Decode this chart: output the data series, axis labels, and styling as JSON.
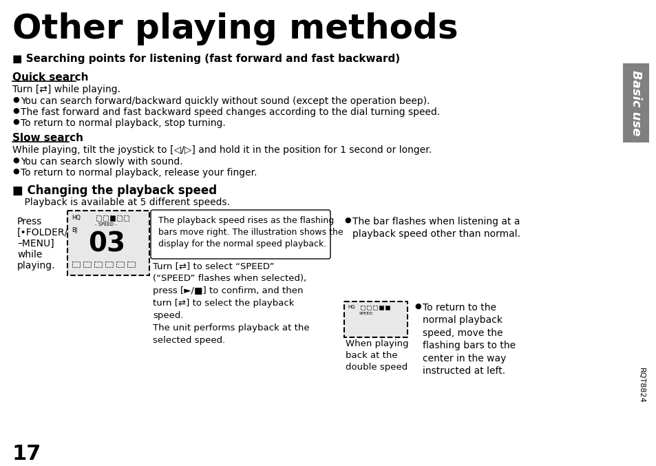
{
  "title": "Other playing methods",
  "section1_header": "■ Searching points for listening (fast forward and fast backward)",
  "quick_search_label": "Quick search",
  "quick_search_text": "Turn [⇄] while playing.",
  "quick_search_bullets": [
    "You can search forward/backward quickly without sound (except the operation beep).",
    "The fast forward and fast backward speed changes according to the dial turning speed.",
    "To return to normal playback, stop turning."
  ],
  "slow_search_label": "Slow search",
  "slow_search_text": "While playing, tilt the joystick to [◁/▷] and hold it in the position for 1 second or longer.",
  "slow_search_bullets": [
    "You can search slowly with sound.",
    "To return to normal playback, release your finger."
  ],
  "section2_header": "■ Changing the playback speed",
  "section2_subtext": "    Playback is available at 5 different speeds.",
  "press_text": [
    "Press",
    "[•FOLDER/",
    "–MENU]",
    "while",
    "playing."
  ],
  "caption_box_text": "The playback speed rises as the flashing\nbars move right. The illustration shows the\ndisplay for the normal speed playback.",
  "turn_text": "Turn [⇄] to select “SPEED”\n(“SPEED” flashes when selected),\npress [►/■] to confirm, and then\nturn [⇄] to select the playback\nspeed.\nThe unit performs playback at the\nselected speed.",
  "right_col_text1": "The bar flashes when listening at a\nplayback speed other than normal.",
  "right_col_text2": "When playing\nback at the\ndouble speed",
  "right_col_text3": "To return to the\nnormal playback\nspeed, move the\nflashing bars to the\ncenter in the way\ninstructed at left.",
  "page_number": "17",
  "rqt": "RQT8824",
  "basic_use_text": "Basic use",
  "bg_color": "#ffffff",
  "text_color": "#000000",
  "tab_color": "#808080"
}
